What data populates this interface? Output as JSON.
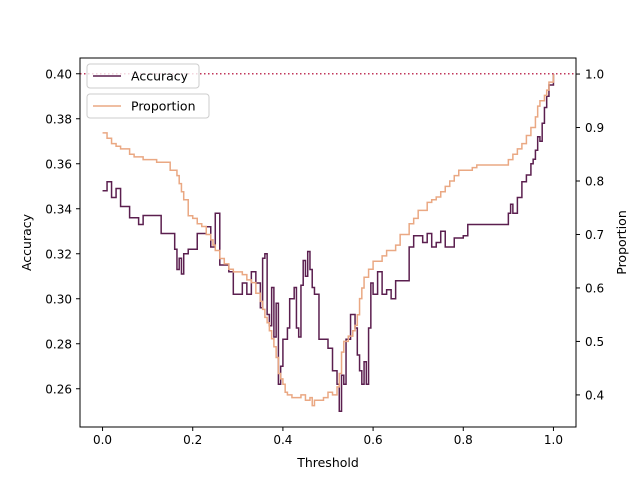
{
  "chart_data": {
    "type": "line",
    "xlabel": "Threshold",
    "ylabel": "Accuracy",
    "y2label": "Proportion",
    "xlim": [
      -0.05,
      1.05
    ],
    "ylim": [
      0.243,
      0.407
    ],
    "y2lim": [
      0.34,
      1.03
    ],
    "xticks": [
      "0.0",
      "0.2",
      "0.4",
      "0.6",
      "0.8",
      "1.0"
    ],
    "yticks": [
      "0.26",
      "0.28",
      "0.30",
      "0.32",
      "0.34",
      "0.36",
      "0.38",
      "0.40"
    ],
    "y2ticks": [
      "0.4",
      "0.5",
      "0.6",
      "0.7",
      "0.8",
      "0.9",
      "1.0"
    ],
    "reference_line": {
      "axis": "left",
      "y": 0.4,
      "style": "dotted",
      "color": "#c0365a"
    },
    "legend": [
      "Accuracy",
      "Proportion"
    ],
    "legend_position": "top-left",
    "grid": false,
    "step": true,
    "series": [
      {
        "name": "Accuracy",
        "axis": "left",
        "color": "#5b1f4f",
        "points": [
          [
            0.0,
            0.348
          ],
          [
            0.01,
            0.352
          ],
          [
            0.02,
            0.345
          ],
          [
            0.03,
            0.349
          ],
          [
            0.04,
            0.341
          ],
          [
            0.06,
            0.336
          ],
          [
            0.08,
            0.333
          ],
          [
            0.09,
            0.337
          ],
          [
            0.13,
            0.329
          ],
          [
            0.16,
            0.322
          ],
          [
            0.165,
            0.313
          ],
          [
            0.17,
            0.318
          ],
          [
            0.175,
            0.311
          ],
          [
            0.18,
            0.32
          ],
          [
            0.19,
            0.322
          ],
          [
            0.21,
            0.329
          ],
          [
            0.23,
            0.332
          ],
          [
            0.24,
            0.323
          ],
          [
            0.25,
            0.338
          ],
          [
            0.26,
            0.315
          ],
          [
            0.28,
            0.312
          ],
          [
            0.29,
            0.302
          ],
          [
            0.31,
            0.307
          ],
          [
            0.32,
            0.302
          ],
          [
            0.33,
            0.312
          ],
          [
            0.34,
            0.307
          ],
          [
            0.35,
            0.296
          ],
          [
            0.355,
            0.318
          ],
          [
            0.36,
            0.32
          ],
          [
            0.365,
            0.293
          ],
          [
            0.37,
            0.288
          ],
          [
            0.375,
            0.305
          ],
          [
            0.38,
            0.283
          ],
          [
            0.385,
            0.298
          ],
          [
            0.39,
            0.262
          ],
          [
            0.395,
            0.27
          ],
          [
            0.4,
            0.282
          ],
          [
            0.41,
            0.287
          ],
          [
            0.415,
            0.3
          ],
          [
            0.425,
            0.305
          ],
          [
            0.43,
            0.287
          ],
          [
            0.435,
            0.283
          ],
          [
            0.44,
            0.306
          ],
          [
            0.445,
            0.317
          ],
          [
            0.45,
            0.31
          ],
          [
            0.455,
            0.321
          ],
          [
            0.46,
            0.313
          ],
          [
            0.465,
            0.305
          ],
          [
            0.47,
            0.302
          ],
          [
            0.48,
            0.282
          ],
          [
            0.5,
            0.278
          ],
          [
            0.51,
            0.268
          ],
          [
            0.52,
            0.262
          ],
          [
            0.525,
            0.25
          ],
          [
            0.53,
            0.266
          ],
          [
            0.535,
            0.262
          ],
          [
            0.54,
            0.282
          ],
          [
            0.55,
            0.293
          ],
          [
            0.56,
            0.287
          ],
          [
            0.565,
            0.275
          ],
          [
            0.57,
            0.268
          ],
          [
            0.575,
            0.262
          ],
          [
            0.58,
            0.272
          ],
          [
            0.585,
            0.262
          ],
          [
            0.59,
            0.287
          ],
          [
            0.595,
            0.307
          ],
          [
            0.6,
            0.302
          ],
          [
            0.61,
            0.312
          ],
          [
            0.62,
            0.302
          ],
          [
            0.63,
            0.304
          ],
          [
            0.64,
            0.3
          ],
          [
            0.65,
            0.308
          ],
          [
            0.68,
            0.323
          ],
          [
            0.69,
            0.328
          ],
          [
            0.71,
            0.325
          ],
          [
            0.72,
            0.329
          ],
          [
            0.73,
            0.323
          ],
          [
            0.74,
            0.325
          ],
          [
            0.75,
            0.33
          ],
          [
            0.76,
            0.323
          ],
          [
            0.78,
            0.327
          ],
          [
            0.8,
            0.328
          ],
          [
            0.81,
            0.333
          ],
          [
            0.9,
            0.338
          ],
          [
            0.905,
            0.342
          ],
          [
            0.91,
            0.338
          ],
          [
            0.92,
            0.345
          ],
          [
            0.93,
            0.352
          ],
          [
            0.94,
            0.355
          ],
          [
            0.95,
            0.36
          ],
          [
            0.955,
            0.362
          ],
          [
            0.96,
            0.366
          ],
          [
            0.965,
            0.372
          ],
          [
            0.97,
            0.37
          ],
          [
            0.975,
            0.378
          ],
          [
            0.98,
            0.385
          ],
          [
            0.985,
            0.39
          ],
          [
            0.99,
            0.395
          ],
          [
            1.0,
            0.4
          ]
        ]
      },
      {
        "name": "Proportion",
        "axis": "right",
        "color": "#eaa883",
        "points": [
          [
            0.0,
            0.89
          ],
          [
            0.01,
            0.88
          ],
          [
            0.02,
            0.87
          ],
          [
            0.03,
            0.865
          ],
          [
            0.04,
            0.86
          ],
          [
            0.06,
            0.85
          ],
          [
            0.07,
            0.845
          ],
          [
            0.09,
            0.84
          ],
          [
            0.12,
            0.835
          ],
          [
            0.15,
            0.82
          ],
          [
            0.165,
            0.81
          ],
          [
            0.17,
            0.795
          ],
          [
            0.175,
            0.78
          ],
          [
            0.18,
            0.765
          ],
          [
            0.19,
            0.735
          ],
          [
            0.2,
            0.73
          ],
          [
            0.21,
            0.72
          ],
          [
            0.22,
            0.715
          ],
          [
            0.23,
            0.7
          ],
          [
            0.24,
            0.69
          ],
          [
            0.245,
            0.68
          ],
          [
            0.25,
            0.67
          ],
          [
            0.26,
            0.655
          ],
          [
            0.27,
            0.645
          ],
          [
            0.28,
            0.635
          ],
          [
            0.29,
            0.63
          ],
          [
            0.31,
            0.625
          ],
          [
            0.32,
            0.615
          ],
          [
            0.33,
            0.61
          ],
          [
            0.34,
            0.59
          ],
          [
            0.35,
            0.575
          ],
          [
            0.355,
            0.56
          ],
          [
            0.36,
            0.545
          ],
          [
            0.365,
            0.535
          ],
          [
            0.37,
            0.52
          ],
          [
            0.375,
            0.505
          ],
          [
            0.38,
            0.49
          ],
          [
            0.385,
            0.47
          ],
          [
            0.39,
            0.44
          ],
          [
            0.395,
            0.43
          ],
          [
            0.4,
            0.42
          ],
          [
            0.405,
            0.405
          ],
          [
            0.41,
            0.4
          ],
          [
            0.42,
            0.395
          ],
          [
            0.44,
            0.4
          ],
          [
            0.45,
            0.39
          ],
          [
            0.46,
            0.395
          ],
          [
            0.465,
            0.38
          ],
          [
            0.47,
            0.39
          ],
          [
            0.49,
            0.395
          ],
          [
            0.5,
            0.405
          ],
          [
            0.51,
            0.4
          ],
          [
            0.52,
            0.415
          ],
          [
            0.525,
            0.44
          ],
          [
            0.53,
            0.48
          ],
          [
            0.535,
            0.5
          ],
          [
            0.545,
            0.51
          ],
          [
            0.555,
            0.52
          ],
          [
            0.56,
            0.53
          ],
          [
            0.565,
            0.55
          ],
          [
            0.57,
            0.58
          ],
          [
            0.575,
            0.6
          ],
          [
            0.58,
            0.62
          ],
          [
            0.59,
            0.635
          ],
          [
            0.6,
            0.65
          ],
          [
            0.62,
            0.66
          ],
          [
            0.63,
            0.67
          ],
          [
            0.65,
            0.68
          ],
          [
            0.66,
            0.7
          ],
          [
            0.68,
            0.72
          ],
          [
            0.69,
            0.73
          ],
          [
            0.7,
            0.745
          ],
          [
            0.72,
            0.76
          ],
          [
            0.73,
            0.765
          ],
          [
            0.74,
            0.77
          ],
          [
            0.75,
            0.78
          ],
          [
            0.76,
            0.79
          ],
          [
            0.77,
            0.8
          ],
          [
            0.78,
            0.81
          ],
          [
            0.79,
            0.82
          ],
          [
            0.82,
            0.825
          ],
          [
            0.83,
            0.83
          ],
          [
            0.9,
            0.84
          ],
          [
            0.91,
            0.85
          ],
          [
            0.92,
            0.86
          ],
          [
            0.93,
            0.87
          ],
          [
            0.94,
            0.885
          ],
          [
            0.95,
            0.9
          ],
          [
            0.96,
            0.92
          ],
          [
            0.965,
            0.94
          ],
          [
            0.97,
            0.95
          ],
          [
            0.98,
            0.96
          ],
          [
            0.985,
            0.97
          ],
          [
            0.99,
            0.985
          ],
          [
            1.0,
            1.0
          ]
        ]
      }
    ]
  }
}
